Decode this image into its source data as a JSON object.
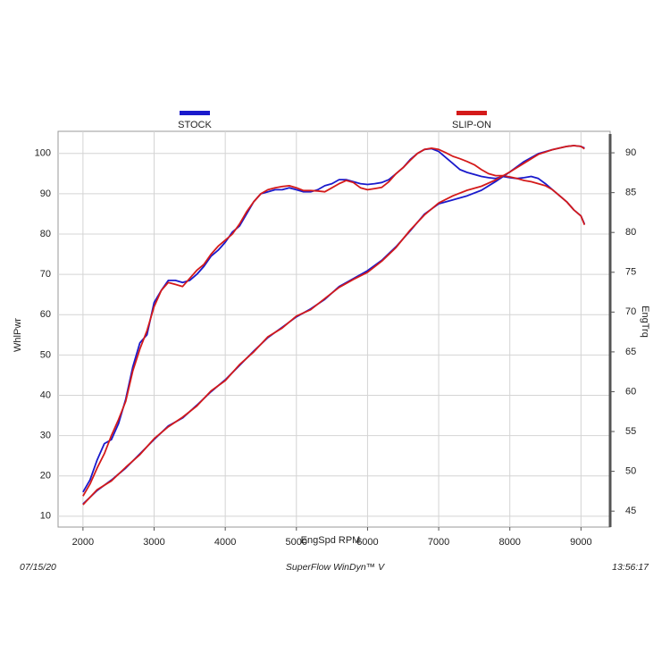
{
  "chart_data": {
    "type": "line",
    "xlabel": "EngSpd  RPM",
    "ylabel": "WhlPwr",
    "y2label": "EngTrq",
    "footer_left": "07/15/20",
    "footer_center": "SuperFlow WinDyn™ V",
    "footer_right": "13:56:17",
    "xlim": [
      1650,
      9410
    ],
    "xticks": [
      2000,
      3000,
      4000,
      5000,
      6000,
      7000,
      8000,
      9000
    ],
    "ylim": [
      7.3,
      105.5
    ],
    "yticks": [
      10,
      20,
      30,
      40,
      50,
      60,
      70,
      80,
      90,
      100
    ],
    "y2lim": [
      43,
      92.7
    ],
    "y2ticks": [
      45,
      50,
      55,
      60,
      65,
      70,
      75,
      80,
      85,
      90
    ],
    "grid": true,
    "series": [
      {
        "name": "STOCK",
        "color": "#1a1acc",
        "x": [
          2000,
          2100,
          2200,
          2300,
          2400,
          2500,
          2600,
          2700,
          2800,
          2900,
          3000,
          3100,
          3200,
          3300,
          3400,
          3500,
          3600,
          3700,
          3800,
          3900,
          4000,
          4100,
          4200,
          4300,
          4400,
          4500,
          4600,
          4700,
          4800,
          4900,
          5000,
          5100,
          5200,
          5300,
          5400,
          5500,
          5600,
          5700,
          5800,
          5900,
          6000,
          6100,
          6200,
          6300,
          6400,
          6500,
          6600,
          6700,
          6800,
          6900,
          7000,
          7100,
          7200,
          7300,
          7400,
          7500,
          7600,
          7700,
          7800,
          7900,
          8000,
          8100,
          8200,
          8300,
          8400,
          8500,
          8600,
          8700,
          8800,
          8900,
          9000,
          9050
        ],
        "values": [
          16,
          19,
          24,
          28,
          29,
          33,
          39,
          47,
          53,
          55,
          63,
          66,
          68.5,
          68.5,
          68,
          68.5,
          70,
          72,
          74.5,
          76,
          78,
          80.5,
          82,
          85,
          88,
          90,
          90.5,
          91,
          91,
          91.5,
          91,
          90.5,
          90.5,
          91,
          92,
          92.5,
          93.5,
          93.5,
          93,
          92.5,
          92.3,
          92.5,
          92.8,
          93.5,
          95,
          96.5,
          98.5,
          100,
          101,
          101.2,
          100.5,
          99,
          97.5,
          96,
          95.3,
          94.8,
          94.3,
          94,
          93.8,
          94.3,
          94,
          93.8,
          94,
          94.3,
          93.8,
          92.5,
          91,
          89.5,
          88,
          86,
          84.5,
          82.5
        ]
      },
      {
        "name": "SLIP-ON",
        "color": "#d41a1a",
        "x": [
          2000,
          2100,
          2200,
          2300,
          2400,
          2500,
          2600,
          2700,
          2800,
          2900,
          3000,
          3100,
          3200,
          3300,
          3400,
          3500,
          3600,
          3700,
          3800,
          3900,
          4000,
          4100,
          4200,
          4300,
          4400,
          4500,
          4600,
          4700,
          4800,
          4900,
          5000,
          5100,
          5200,
          5300,
          5400,
          5500,
          5600,
          5700,
          5800,
          5900,
          6000,
          6100,
          6200,
          6300,
          6400,
          6500,
          6600,
          6700,
          6800,
          6900,
          7000,
          7100,
          7200,
          7300,
          7400,
          7500,
          7600,
          7700,
          7800,
          7900,
          8000,
          8100,
          8200,
          8300,
          8400,
          8500,
          8600,
          8700,
          8800,
          8900,
          9000,
          9050
        ],
        "values": [
          15,
          18,
          22,
          25.5,
          30,
          34,
          38.5,
          46,
          51.5,
          56,
          62,
          66,
          68,
          67.5,
          67,
          69,
          71,
          72.5,
          75,
          77,
          78.5,
          80,
          82.5,
          85.5,
          88,
          90,
          91,
          91.5,
          91.8,
          92,
          91.5,
          90.8,
          90.8,
          90.7,
          90.5,
          91.5,
          92.5,
          93.3,
          92.8,
          91.5,
          91,
          91.3,
          91.6,
          93,
          95,
          96.5,
          98.3,
          100,
          101,
          101.3,
          101,
          100.2,
          99.3,
          98.7,
          98,
          97.2,
          96,
          95,
          94.5,
          94.5,
          94.2,
          93.8,
          93.3,
          93,
          92.5,
          92,
          91,
          89.5,
          88,
          86,
          84.5,
          82.3
        ]
      },
      {
        "color": "#1a1acc",
        "axis": "y2",
        "x": [
          2000,
          2200,
          2400,
          2600,
          2800,
          3000,
          3200,
          3400,
          3600,
          3800,
          4000,
          4200,
          4400,
          4600,
          4800,
          5000,
          5200,
          5400,
          5600,
          5800,
          6000,
          6200,
          6400,
          6600,
          6800,
          7000,
          7200,
          7400,
          7600,
          7800,
          8000,
          8200,
          8400,
          8600,
          8800,
          8900,
          9000,
          9050
        ],
        "values": [
          45.9,
          47.6,
          48.9,
          50.4,
          52.2,
          54.0,
          55.7,
          56.7,
          58.3,
          60.0,
          61.5,
          63.3,
          65.1,
          66.8,
          68.1,
          69.4,
          70.4,
          71.6,
          73.2,
          74.2,
          75.2,
          76.5,
          78.2,
          80.2,
          82.3,
          83.6,
          84.1,
          84.6,
          85.3,
          86.4,
          87.6,
          88.9,
          89.9,
          90.4,
          90.8,
          90.9,
          90.8,
          90.6
        ]
      },
      {
        "color": "#d41a1a",
        "axis": "y2",
        "x": [
          2000,
          2200,
          2400,
          2600,
          2800,
          3000,
          3200,
          3400,
          3600,
          3800,
          4000,
          4200,
          4400,
          4600,
          4800,
          5000,
          5200,
          5400,
          5600,
          5800,
          6000,
          6200,
          6400,
          6600,
          6800,
          7000,
          7200,
          7400,
          7600,
          7800,
          8000,
          8200,
          8400,
          8600,
          8800,
          8900,
          9000,
          9050
        ],
        "values": [
          45.8,
          47.7,
          48.8,
          50.5,
          52.1,
          54.1,
          55.6,
          56.8,
          58.2,
          60.1,
          61.4,
          63.4,
          65.0,
          66.9,
          68.0,
          69.5,
          70.3,
          71.7,
          73.1,
          74.1,
          75.0,
          76.4,
          78.1,
          80.3,
          82.2,
          83.7,
          84.6,
          85.3,
          85.8,
          86.6,
          87.6,
          88.7,
          89.8,
          90.4,
          90.8,
          90.9,
          90.8,
          90.5
        ]
      }
    ]
  }
}
